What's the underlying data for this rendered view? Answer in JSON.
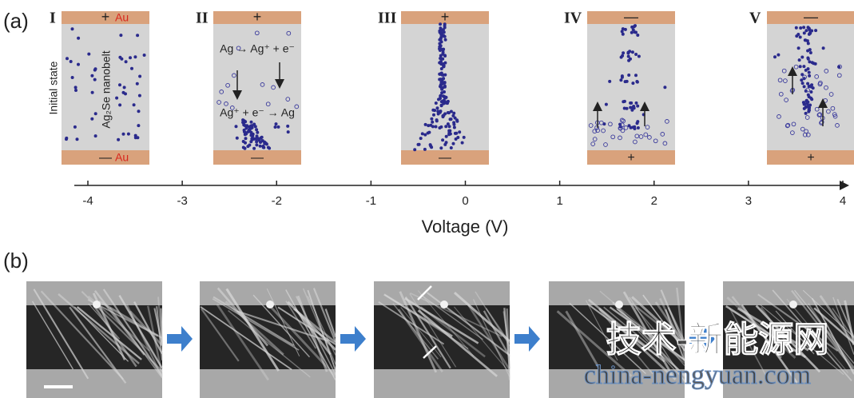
{
  "panel_a": {
    "label": "(a)",
    "stages": [
      {
        "numeral": "I",
        "top_sign": "+",
        "bottom_sign": "—",
        "top_label": "Au",
        "bottom_label": "Au",
        "side_label": "Initial state",
        "nanobelt_label": "Ag₂Se nanobelt"
      },
      {
        "numeral": "II",
        "top_sign": "+",
        "bottom_sign": "—",
        "equation_top": "Ag → Ag⁺ + e⁻",
        "equation_bottom": "Ag⁺ + e⁻ → Ag"
      },
      {
        "numeral": "III",
        "top_sign": "+",
        "bottom_sign": "—"
      },
      {
        "numeral": "IV",
        "top_sign": "—",
        "bottom_sign": "+"
      },
      {
        "numeral": "V",
        "top_sign": "—",
        "bottom_sign": "+"
      }
    ],
    "axis": {
      "title": "Voltage (V)",
      "ticks": [
        -4,
        -3,
        -2,
        -1,
        0,
        1,
        2,
        3,
        4
      ]
    }
  },
  "panel_b": {
    "label": "(b)"
  },
  "watermark": {
    "line1": "技术-新能源网",
    "line2": "china-nengyuan.com"
  }
}
